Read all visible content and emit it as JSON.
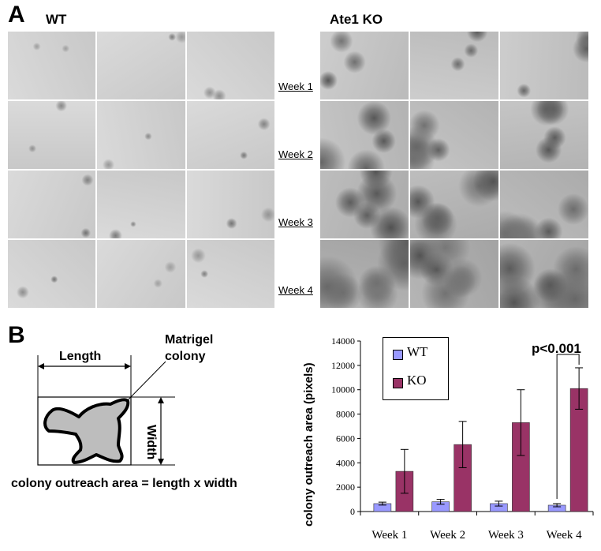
{
  "panel_a": {
    "letter": "A",
    "wt_title": "WT",
    "ko_title": "Ate1 KO",
    "weeks": [
      "Week 1",
      "Week 2",
      "Week 3",
      "Week 4"
    ]
  },
  "panel_b": {
    "letter": "B",
    "diagram": {
      "length_label": "Length",
      "width_label": "Width",
      "colony_label_line1": "Matrigel",
      "colony_label_line2": "colony",
      "formula": "colony outreach area = length x width"
    }
  },
  "chart_data": {
    "type": "bar",
    "categories": [
      "Week 1",
      "Week 2",
      "Week 3",
      "Week 4"
    ],
    "series": [
      {
        "name": "WT",
        "color": "#9999ff",
        "values": [
          650,
          800,
          650,
          520
        ],
        "errors": [
          120,
          200,
          200,
          130
        ]
      },
      {
        "name": "KO",
        "color": "#993366",
        "values": [
          3300,
          5500,
          7300,
          10100
        ],
        "errors": [
          1800,
          1900,
          2700,
          1700
        ]
      }
    ],
    "ylabel": "colony outreach area (pixels)",
    "ylim": [
      0,
      14000
    ],
    "yticks": [
      "0",
      "2000",
      "4000",
      "6000",
      "8000",
      "10000",
      "12000",
      "14000"
    ],
    "annotation": "p<0.001",
    "legend": "top-left"
  }
}
